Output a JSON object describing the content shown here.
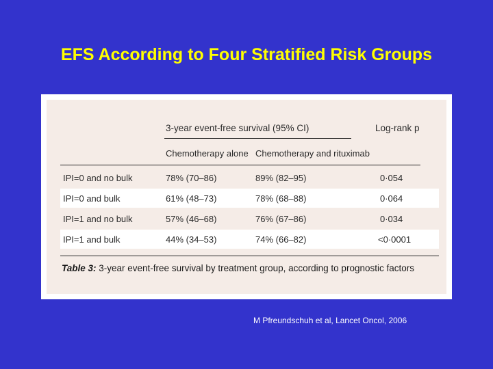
{
  "slide": {
    "title": "EFS According to Four Stratified Risk Groups",
    "citation": "M Pfreundschuh et al, Lancet Oncol, 2006",
    "background_color": "#3333cc",
    "title_color": "#ffff00"
  },
  "table": {
    "group_header": "3-year event-free survival (95% CI)",
    "logrank_header": "Log-rank p",
    "columns": [
      "Chemotherapy alone",
      "Chemotherapy and rituximab"
    ],
    "rows": [
      {
        "group": "IPI=0 and no bulk",
        "chemo": "78% (70–86)",
        "chemo_rtx": "89% (82–95)",
        "p": "0·054"
      },
      {
        "group": "IPI=0 and bulk",
        "chemo": "61% (48–73)",
        "chemo_rtx": "78% (68–88)",
        "p": "0·064"
      },
      {
        "group": "IPI=1 and no bulk",
        "chemo": "57% (46–68)",
        "chemo_rtx": "76% (67–86)",
        "p": "0·034"
      },
      {
        "group": "IPI=1 and bulk",
        "chemo": "44% (34–53)",
        "chemo_rtx": "74% (66–82)",
        "p": "<0·0001"
      }
    ],
    "caption_label": "Table 3:",
    "caption_text": " 3-year event-free survival by treatment group, according to prognostic factors"
  }
}
